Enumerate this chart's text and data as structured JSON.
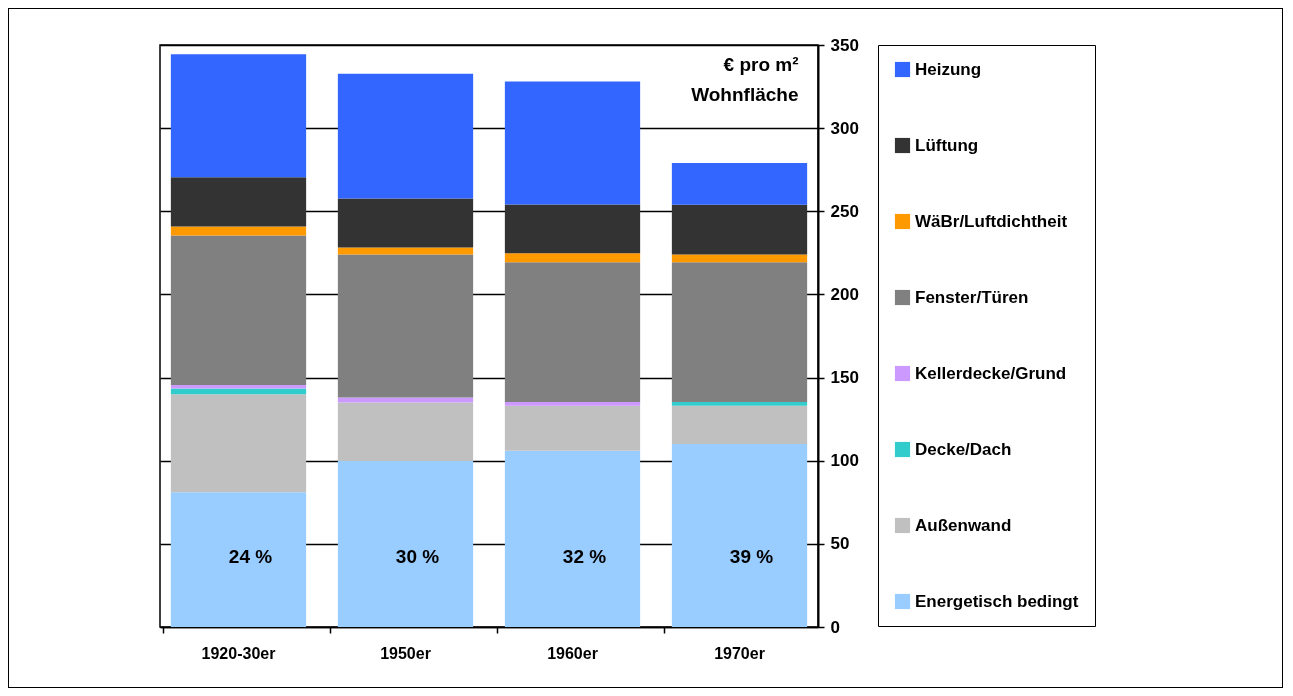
{
  "chart_data": {
    "type": "bar",
    "stacked": true,
    "ylabel": "€ pro m² Wohnfläche",
    "categories": [
      "1920-30er",
      "1950er",
      "1960er",
      "1970er"
    ],
    "series": [
      {
        "name": "Energetisch bedingt",
        "color": "#99ccff",
        "values": [
          81,
          100,
          106,
          110
        ]
      },
      {
        "name": "Außenwand",
        "color": "#c0c0c0",
        "values": [
          59,
          35,
          27,
          23
        ]
      },
      {
        "name": "Decke/Dach",
        "color": "#33cccc",
        "values": [
          3.5,
          0,
          0,
          2.3
        ]
      },
      {
        "name": "Kellerdecke/Grund",
        "color": "#cc99ff",
        "values": [
          2,
          3,
          2.3,
          0
        ]
      },
      {
        "name": "Fenster/Türen",
        "color": "#808080",
        "values": [
          90,
          86,
          84,
          84
        ]
      },
      {
        "name": "WäBr/Luftdichtheit",
        "color": "#ff9900",
        "values": [
          5.4,
          4.2,
          5.4,
          4.7
        ]
      },
      {
        "name": "Lüftung",
        "color": "#333333",
        "values": [
          29.5,
          29.5,
          29.4,
          30
        ]
      },
      {
        "name": "Heizung",
        "color": "#3366ff",
        "values": [
          74,
          75,
          74,
          25
        ]
      }
    ],
    "ylim": [
      0,
      350
    ],
    "yticks": [
      0,
      50,
      100,
      150,
      200,
      250,
      300,
      350
    ],
    "grid": "y",
    "legend": "right",
    "annotations": [
      "24 %",
      "30 %",
      "32 %",
      "39 %"
    ]
  }
}
